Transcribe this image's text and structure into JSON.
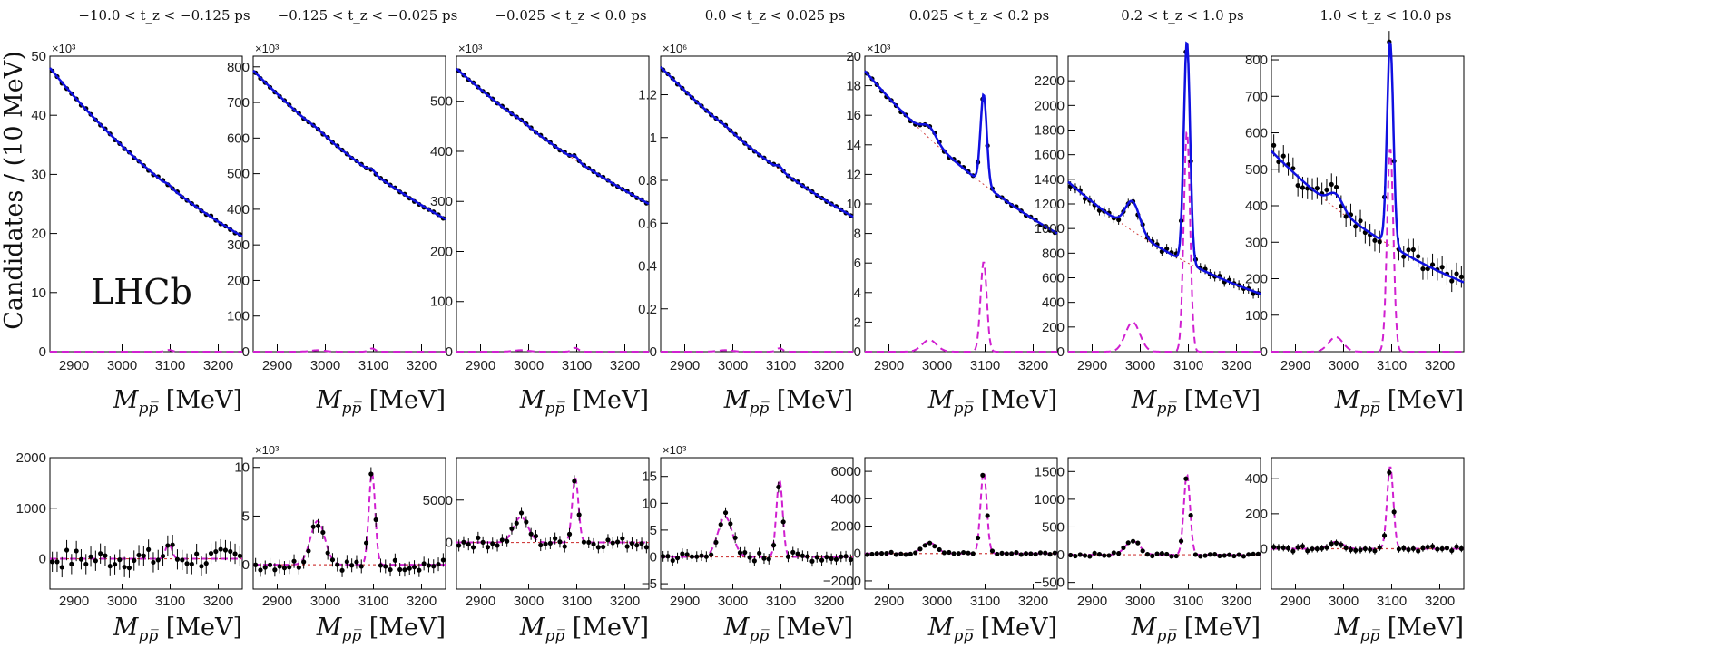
{
  "figure": {
    "experiment_label": "LHCb",
    "y_axis_label": "Candidates / (10 MeV)",
    "x_axis_label_main": "M",
    "x_axis_label_sub": "pp̅",
    "x_axis_unit": "[MeV]",
    "x_ticks": [
      2900,
      3000,
      3100,
      3200
    ],
    "colors": {
      "fit": "#1010e0",
      "signal": "#d020d0",
      "background": "#d04040",
      "points": "#000000"
    }
  },
  "chart_data": [
    {
      "type": "scatter",
      "title": "−10.0 < t_z < −0.125 ps",
      "multiplier": "×10³",
      "top": {
        "ylim": [
          0,
          50
        ],
        "yticks": [
          0,
          10,
          20,
          30,
          40,
          50
        ],
        "ytick_labels": [
          "0",
          "10",
          "20",
          "30",
          "40",
          "50"
        ],
        "bkg_at": [
          48,
          19.5
        ],
        "peak_c": 0,
        "peak_psi": 0.3,
        "err": 0.3,
        "scatter": 0.2
      },
      "bottom": {
        "ylim": [
          -600,
          2000
        ],
        "yticks": [
          0,
          1000,
          2000
        ],
        "ytick_labels": [
          "0",
          "1000",
          "2000"
        ],
        "peak_c": 0,
        "peak_psi": 300,
        "err": 200,
        "scatter": 200,
        "multiplier": ""
      }
    },
    {
      "type": "scatter",
      "title": "−0.125 < t_z < −0.025 ps",
      "multiplier": "×10³",
      "top": {
        "ylim": [
          0,
          830
        ],
        "yticks": [
          0,
          100,
          200,
          300,
          400,
          500,
          600,
          700,
          800
        ],
        "ytick_labels": [
          "0",
          "100",
          "200",
          "300",
          "400",
          "500",
          "600",
          "700",
          "800"
        ],
        "bkg_at": [
          790,
          372
        ],
        "peak_c": 4,
        "peak_psi": 9,
        "err": 3,
        "scatter": 2
      },
      "bottom": {
        "ylim": [
          -2500,
          11000
        ],
        "yticks": [
          0,
          5,
          10
        ],
        "ytick_labels": [
          "0",
          "5",
          "10"
        ],
        "tick_scale": 1000,
        "peak_c": 4500,
        "peak_psi": 9500,
        "err": 700,
        "scatter": 600,
        "multiplier": "×10³"
      }
    },
    {
      "type": "scatter",
      "title": "−0.025 < t_z < 0.0 ps",
      "multiplier": "×10³",
      "top": {
        "ylim": [
          0,
          590
        ],
        "yticks": [
          0,
          100,
          200,
          300,
          400,
          500
        ],
        "ytick_labels": [
          "0",
          "100",
          "200",
          "300",
          "400",
          "500"
        ],
        "bkg_at": [
          565,
          295
        ],
        "peak_c": 3,
        "peak_psi": 7.5,
        "err": 2,
        "scatter": 1.5
      },
      "bottom": {
        "ylim": [
          -5500,
          10000
        ],
        "yticks": [
          0,
          5000
        ],
        "ytick_labels": [
          "0",
          "5000"
        ],
        "peak_c": 3000,
        "peak_psi": 7600,
        "err": 700,
        "scatter": 600,
        "multiplier": ""
      }
    },
    {
      "type": "scatter",
      "title": "0.0 < t_z < 0.025 ps",
      "multiplier": "×10⁶",
      "top": {
        "ylim": [
          0,
          1.38
        ],
        "yticks": [
          0,
          0.2,
          0.4,
          0.6,
          0.8,
          1.0,
          1.2
        ],
        "ytick_labels": [
          "0",
          "0.2",
          "0.4",
          "0.6",
          "0.8",
          "1",
          "1.2"
        ],
        "bkg_at": [
          1.33,
          0.63
        ],
        "peak_c": 0.007,
        "peak_psi": 0.016,
        "err": 0.004,
        "scatter": 0.003
      },
      "bottom": {
        "ylim": [
          -6000,
          18500
        ],
        "yticks": [
          -5,
          0,
          5,
          10,
          15
        ],
        "ytick_labels": [
          "−5",
          "0",
          "5",
          "10",
          "15"
        ],
        "tick_scale": 1000,
        "peak_c": 7500,
        "peak_psi": 14500,
        "err": 1000,
        "scatter": 900,
        "multiplier": "×10³"
      }
    },
    {
      "type": "scatter",
      "title": "0.025 < t_z < 0.2 ps",
      "multiplier": "×10³",
      "top": {
        "ylim": [
          0,
          20
        ],
        "yticks": [
          0,
          2,
          4,
          6,
          8,
          10,
          12,
          14,
          16,
          18,
          20
        ],
        "ytick_labels": [
          "0",
          "2",
          "4",
          "6",
          "8",
          "10",
          "12",
          "14",
          "16",
          "18",
          "20"
        ],
        "bkg_at": [
          19,
          8.0
        ],
        "peak_c": 0.8,
        "peak_psi": 6.1,
        "err": 0.15,
        "scatter": 0.1
      },
      "bottom": {
        "ylim": [
          -2600,
          7000
        ],
        "yticks": [
          -2000,
          0,
          2000,
          4000,
          6000
        ],
        "ytick_labels": [
          "−2000",
          "0",
          "2000",
          "4000",
          "6000"
        ],
        "peak_c": 800,
        "peak_psi": 6000,
        "err": 150,
        "scatter": 100,
        "multiplier": ""
      }
    },
    {
      "type": "scatter",
      "title": "0.2 < t_z < 1.0 ps",
      "multiplier": "",
      "top": {
        "ylim": [
          0,
          2400
        ],
        "yticks": [
          0,
          200,
          400,
          600,
          800,
          1000,
          1200,
          1400,
          1600,
          1800,
          2000,
          2200
        ],
        "ytick_labels": [
          "0",
          "200",
          "400",
          "600",
          "800",
          "1000",
          "1200",
          "1400",
          "1600",
          "1800",
          "2000",
          "2200"
        ],
        "bkg_at": [
          1380,
          470
        ],
        "peak_c": 240,
        "peak_psi": 1800,
        "err": 40,
        "scatter": 25
      },
      "bottom": {
        "ylim": [
          -620,
          1750
        ],
        "yticks": [
          -500,
          0,
          500,
          1000,
          1500
        ],
        "ytick_labels": [
          "−500",
          "0",
          "500",
          "1000",
          "1500"
        ],
        "peak_c": 250,
        "peak_psi": 1450,
        "err": 40,
        "scatter": 30,
        "multiplier": ""
      }
    },
    {
      "type": "scatter",
      "title": "1.0 < t_z < 10.0 ps",
      "multiplier": "",
      "top": {
        "ylim": [
          0,
          810
        ],
        "yticks": [
          0,
          100,
          200,
          300,
          400,
          500,
          600,
          700,
          800
        ],
        "ytick_labels": [
          "0",
          "100",
          "200",
          "300",
          "400",
          "500",
          "600",
          "700",
          "800"
        ],
        "bkg_at": [
          550,
          190
        ],
        "peak_c": 40,
        "peak_psi": 560,
        "err": 30,
        "scatter": 25
      },
      "bottom": {
        "ylim": [
          -230,
          520
        ],
        "yticks": [
          0,
          200,
          400
        ],
        "ytick_labels": [
          "0",
          "200",
          "400"
        ],
        "peak_c": 40,
        "peak_psi": 470,
        "err": 20,
        "scatter": 15,
        "multiplier": ""
      }
    }
  ],
  "x_range": [
    2850,
    3250
  ]
}
